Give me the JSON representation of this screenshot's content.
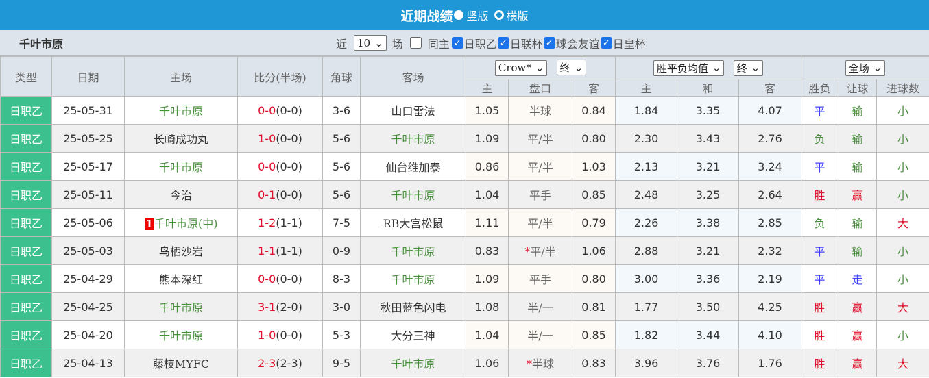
{
  "title": "近期战绩",
  "view_options": [
    "竖版",
    "横版"
  ],
  "filter": {
    "team": "千叶市原",
    "recent_prefix": "近",
    "count": "10",
    "recent_suffix": "场",
    "same_home": "同主",
    "leagues": [
      {
        "label": "日职乙",
        "checked": true
      },
      {
        "label": "日联杯",
        "checked": true
      },
      {
        "label": "球会友谊",
        "checked": true
      },
      {
        "label": "日皇杯",
        "checked": true
      }
    ]
  },
  "headers": {
    "type": "类型",
    "date": "日期",
    "home": "主场",
    "score": "比分(半场)",
    "corner": "角球",
    "away": "客场",
    "company": "Crow*",
    "odds_stage": "终",
    "avg_type": "胜平负均值",
    "avg_stage": "终",
    "period": "全场",
    "sub": [
      "主",
      "盘口",
      "客",
      "主",
      "和",
      "客",
      "胜负",
      "让球",
      "进球数"
    ]
  },
  "colors": {
    "type_bg": "#3cc08d",
    "title_bg": "#1f97d7",
    "highlight_team": "#4a8f3e",
    "score": "#e0102a"
  },
  "rows": [
    {
      "type": "日职乙",
      "date": "25-05-31",
      "home": "千叶市原",
      "home_hl": true,
      "badge": "",
      "score": "0-0",
      "half": "(0-0)",
      "corner": "3-6",
      "away": "山口雷法",
      "away_hl": false,
      "o_home": "1.05",
      "handicap": "半球",
      "star": false,
      "o_away": "0.84",
      "a_home": "1.84",
      "a_draw": "3.35",
      "a_away": "4.07",
      "res": "平",
      "hc": "输",
      "ou": "小"
    },
    {
      "type": "日职乙",
      "date": "25-05-25",
      "home": "长崎成功丸",
      "home_hl": false,
      "badge": "",
      "score": "1-0",
      "half": "(0-0)",
      "corner": "5-6",
      "away": "千叶市原",
      "away_hl": true,
      "o_home": "1.09",
      "handicap": "平/半",
      "star": false,
      "o_away": "0.80",
      "a_home": "2.30",
      "a_draw": "3.43",
      "a_away": "2.76",
      "res": "负",
      "hc": "输",
      "ou": "小"
    },
    {
      "type": "日职乙",
      "date": "25-05-17",
      "home": "千叶市原",
      "home_hl": true,
      "badge": "",
      "score": "0-0",
      "half": "(0-0)",
      "corner": "5-6",
      "away": "仙台维加泰",
      "away_hl": false,
      "o_home": "0.86",
      "handicap": "平/半",
      "star": false,
      "o_away": "1.03",
      "a_home": "2.13",
      "a_draw": "3.21",
      "a_away": "3.24",
      "res": "平",
      "hc": "输",
      "ou": "小"
    },
    {
      "type": "日职乙",
      "date": "25-05-11",
      "home": "今治",
      "home_hl": false,
      "badge": "",
      "score": "0-1",
      "half": "(0-0)",
      "corner": "5-6",
      "away": "千叶市原",
      "away_hl": true,
      "o_home": "1.04",
      "handicap": "平手",
      "star": false,
      "o_away": "0.85",
      "a_home": "2.48",
      "a_draw": "3.25",
      "a_away": "2.64",
      "res": "胜",
      "hc": "赢",
      "ou": "小"
    },
    {
      "type": "日职乙",
      "date": "25-05-06",
      "home": "千叶市原(中)",
      "home_hl": true,
      "badge": "1",
      "score": "1-2",
      "half": "(1-1)",
      "corner": "7-5",
      "away": "RB大宫松鼠",
      "away_hl": false,
      "o_home": "1.11",
      "handicap": "平/半",
      "star": false,
      "o_away": "0.79",
      "a_home": "2.26",
      "a_draw": "3.38",
      "a_away": "2.85",
      "res": "负",
      "hc": "输",
      "ou": "大"
    },
    {
      "type": "日职乙",
      "date": "25-05-03",
      "home": "鸟栖沙岩",
      "home_hl": false,
      "badge": "",
      "score": "1-1",
      "half": "(1-1)",
      "corner": "0-9",
      "away": "千叶市原",
      "away_hl": true,
      "o_home": "0.83",
      "handicap": "平/半",
      "star": true,
      "o_away": "1.06",
      "a_home": "2.88",
      "a_draw": "3.21",
      "a_away": "2.32",
      "res": "平",
      "hc": "输",
      "ou": "小"
    },
    {
      "type": "日职乙",
      "date": "25-04-29",
      "home": "熊本深红",
      "home_hl": false,
      "badge": "",
      "score": "0-0",
      "half": "(0-0)",
      "corner": "8-3",
      "away": "千叶市原",
      "away_hl": true,
      "o_home": "1.09",
      "handicap": "平手",
      "star": false,
      "o_away": "0.80",
      "a_home": "3.00",
      "a_draw": "3.36",
      "a_away": "2.19",
      "res": "平",
      "hc": "走",
      "ou": "小"
    },
    {
      "type": "日职乙",
      "date": "25-04-25",
      "home": "千叶市原",
      "home_hl": true,
      "badge": "",
      "score": "3-1",
      "half": "(2-0)",
      "corner": "3-0",
      "away": "秋田蓝色闪电",
      "away_hl": false,
      "o_home": "1.08",
      "handicap": "半/一",
      "star": false,
      "o_away": "0.81",
      "a_home": "1.77",
      "a_draw": "3.50",
      "a_away": "4.25",
      "res": "胜",
      "hc": "赢",
      "ou": "大"
    },
    {
      "type": "日职乙",
      "date": "25-04-20",
      "home": "千叶市原",
      "home_hl": true,
      "badge": "",
      "score": "1-0",
      "half": "(0-0)",
      "corner": "5-3",
      "away": "大分三神",
      "away_hl": false,
      "o_home": "1.04",
      "handicap": "半/一",
      "star": false,
      "o_away": "0.85",
      "a_home": "1.82",
      "a_draw": "3.44",
      "a_away": "4.10",
      "res": "胜",
      "hc": "赢",
      "ou": "小"
    },
    {
      "type": "日职乙",
      "date": "25-04-13",
      "home": "藤枝MYFC",
      "home_hl": false,
      "badge": "",
      "score": "2-3",
      "half": "(2-3)",
      "corner": "9-5",
      "away": "千叶市原",
      "away_hl": true,
      "o_home": "1.06",
      "handicap": "半球",
      "star": true,
      "o_away": "0.83",
      "a_home": "3.96",
      "a_draw": "3.76",
      "a_away": "1.76",
      "res": "胜",
      "hc": "赢",
      "ou": "大"
    }
  ]
}
